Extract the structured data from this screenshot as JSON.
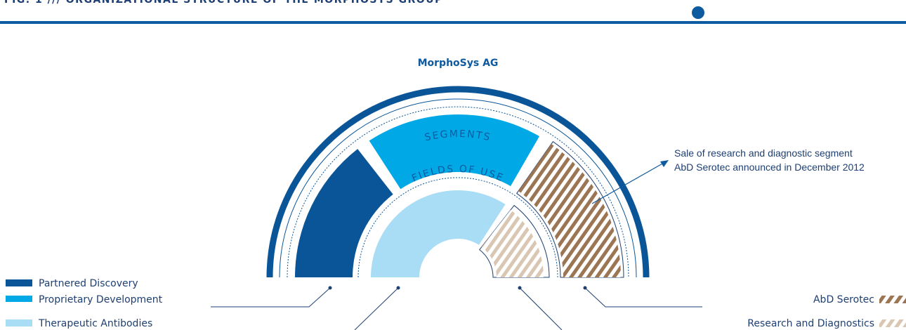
{
  "header": {
    "title": "FIG. 1 /// ORGANIZATIONAL STRUCTURE OF THE MORPHOSYS GROUP"
  },
  "diagram": {
    "title": "MorphoSys AG",
    "segments_label": "SEGMENTS",
    "fields_label": "FIELDS OF USE"
  },
  "annotation": {
    "lines": [
      "Sale of research and diagnostic segment",
      "AbD Serotec announced in December 2012"
    ]
  },
  "legend_left": [
    "Partnered Discovery",
    "Proprietary Development",
    "Therapeutic Antibodies"
  ],
  "legend_right": [
    "AbD Serotec",
    "Research and Diagnostics"
  ]
}
